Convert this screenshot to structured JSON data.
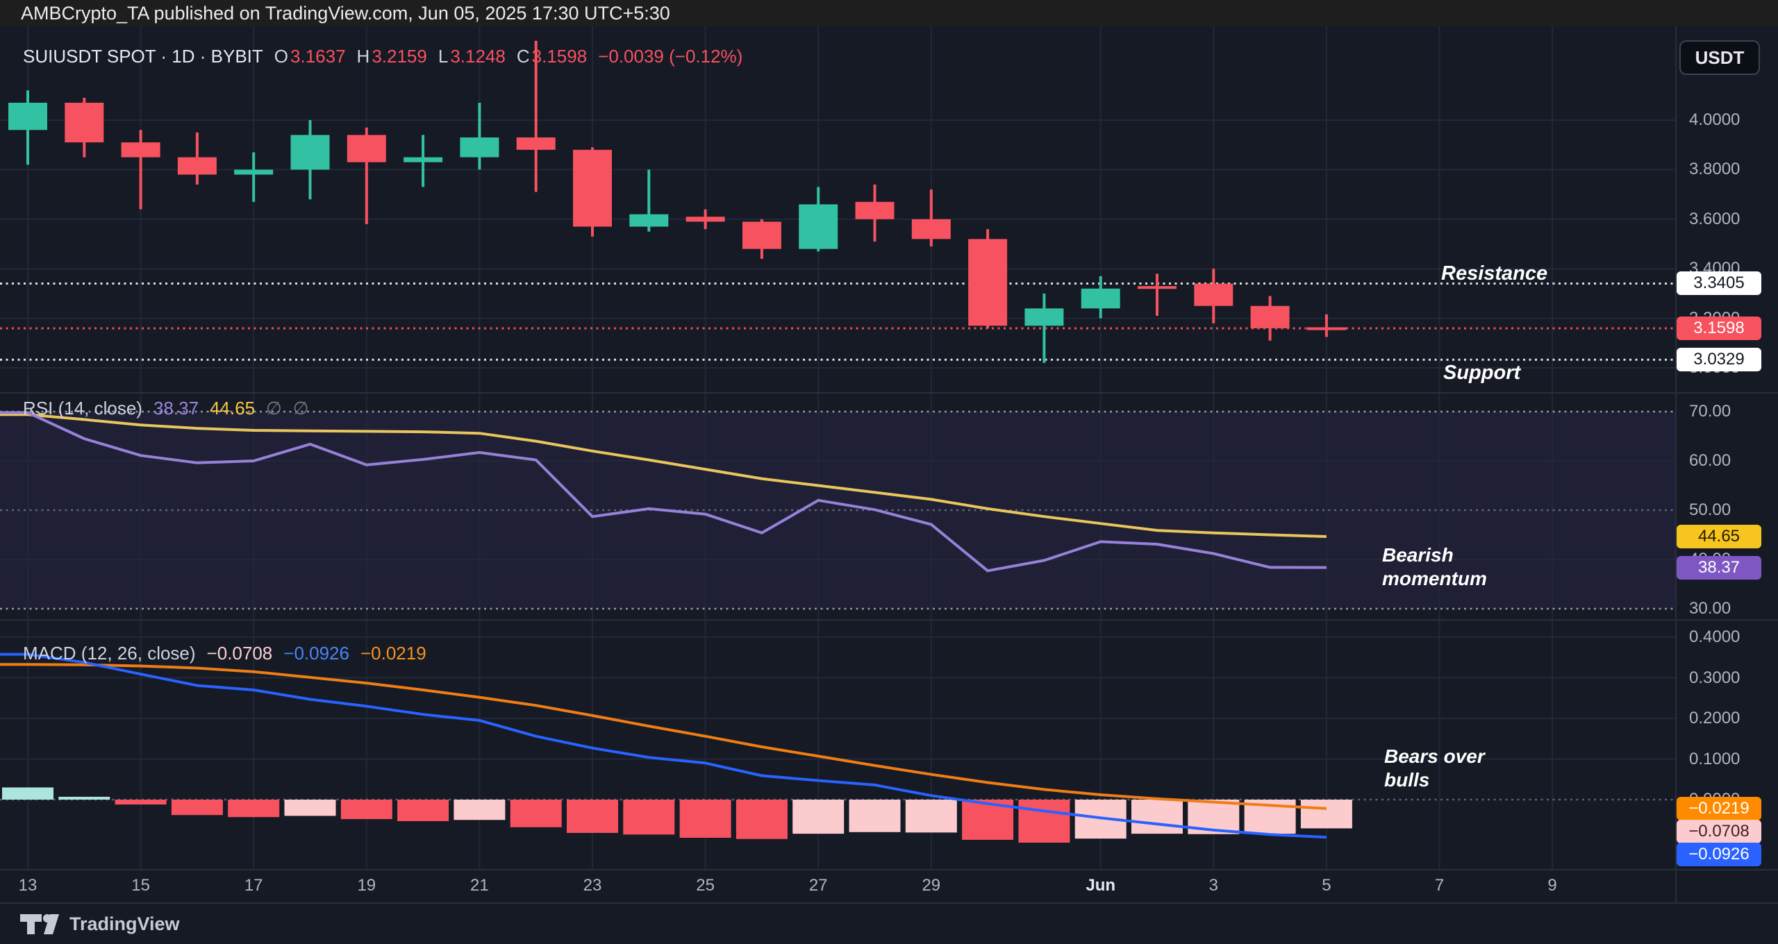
{
  "header": {
    "title": "AMBCrypto_TA published on TradingView.com, Jun 05, 2025 17:30 UTC+5:30"
  },
  "toolbar": {
    "currency_label": "USDT"
  },
  "main_legend": {
    "symbol_title": "SUIUSDT SPOT · 1D · BYBIT",
    "open_label": "O",
    "open": "3.1637",
    "high_label": "H",
    "high": "3.2159",
    "low_label": "L",
    "low": "3.1248",
    "close_label": "C",
    "close": "3.1598",
    "change": "−0.0039 (−0.12%)"
  },
  "rsi_legend": {
    "title": "RSI",
    "params": "(14, close)",
    "rsi_value": "38.37",
    "ma_value": "44.65",
    "placeholder1": "∅",
    "placeholder2": "∅"
  },
  "macd_legend": {
    "title": "MACD",
    "params": "(12, 26, close)",
    "histogram_value": "−0.0708",
    "macd_value": "−0.0926",
    "signal_value": "−0.0219"
  },
  "annotations": {
    "resistance": "Resistance",
    "support": "Support",
    "rsi_note_line1": "Bearish",
    "rsi_note_line2": "momentum",
    "macd_note_line1": "Bears over",
    "macd_note_line2": "bulls"
  },
  "footer": {
    "brand": "TradingView"
  },
  "price_axis": {
    "ticks": [
      {
        "label": "4.0000",
        "value": 4.0
      },
      {
        "label": "3.8000",
        "value": 3.8
      },
      {
        "label": "3.6000",
        "value": 3.6
      },
      {
        "label": "3.4000",
        "value": 3.4
      },
      {
        "label": "3.2000",
        "value": 3.2
      },
      {
        "label": "3.0000",
        "value": 3.0
      }
    ],
    "badges": [
      {
        "name": "resistance-price-badge",
        "label": "3.3405",
        "value": 3.3405,
        "bg": "#ffffff",
        "fg": "#131722"
      },
      {
        "name": "last-price-badge",
        "label": "3.1598",
        "value": 3.1598,
        "bg": "#f7525f",
        "fg": "#ffffff"
      },
      {
        "name": "support-price-badge",
        "label": "3.0329",
        "value": 3.0329,
        "bg": "#ffffff",
        "fg": "#131722"
      }
    ]
  },
  "rsi_axis": {
    "ticks": [
      {
        "label": "70.00",
        "value": 70
      },
      {
        "label": "60.00",
        "value": 60
      },
      {
        "label": "50.00",
        "value": 50
      },
      {
        "label": "40.00",
        "value": 40
      },
      {
        "label": "30.00",
        "value": 30
      }
    ],
    "badges": [
      {
        "name": "rsi-ma-badge",
        "label": "44.65",
        "value": 44.65,
        "bg": "#f6c51f",
        "fg": "#241b00"
      },
      {
        "name": "rsi-value-badge",
        "label": "38.37",
        "value": 38.37,
        "bg": "#7e57c2",
        "fg": "#ffffff"
      }
    ]
  },
  "macd_axis": {
    "ticks": [
      {
        "label": "0.4000",
        "value": 0.4
      },
      {
        "label": "0.3000",
        "value": 0.3
      },
      {
        "label": "0.2000",
        "value": 0.2
      },
      {
        "label": "0.1000",
        "value": 0.1
      },
      {
        "label": "0.0000",
        "value": 0.0
      }
    ],
    "badges": [
      {
        "name": "macd-signal-badge",
        "label": "−0.0219",
        "bg": "#ff8a00",
        "fg": "#ffffff"
      },
      {
        "name": "macd-histogram-badge",
        "label": "−0.0708",
        "bg": "#fccbcd",
        "fg": "#3f1f23"
      },
      {
        "name": "macd-line-badge",
        "label": "−0.0926",
        "bg": "#2962ff",
        "fg": "#ffffff"
      }
    ]
  },
  "time_axis": {
    "ticks": [
      {
        "label": "13",
        "day": 0
      },
      {
        "label": "15",
        "day": 2
      },
      {
        "label": "17",
        "day": 4
      },
      {
        "label": "19",
        "day": 6
      },
      {
        "label": "21",
        "day": 8
      },
      {
        "label": "23",
        "day": 10
      },
      {
        "label": "25",
        "day": 12
      },
      {
        "label": "27",
        "day": 14
      },
      {
        "label": "29",
        "day": 16
      },
      {
        "label": "Jun",
        "day": 19,
        "emphasis": true
      },
      {
        "label": "3",
        "day": 21
      },
      {
        "label": "5",
        "day": 23
      },
      {
        "label": "7",
        "day": 25
      },
      {
        "label": "9",
        "day": 27
      }
    ]
  },
  "chart_data": [
    {
      "type": "candlestick",
      "title": "SUIUSDT SPOT · 1D · BYBIT",
      "symbol": "SUIUSDT",
      "market": "SPOT",
      "interval": "1D",
      "exchange": "BYBIT",
      "up_color": "#32c1a3",
      "down_color": "#f7525f",
      "y_ticks": [
        4.0,
        3.8,
        3.6,
        3.4,
        3.2,
        3.0
      ],
      "ylim": [
        2.96,
        4.38
      ],
      "levels": {
        "resistance": 3.3405,
        "support": 3.0329,
        "last_price": 3.1598
      },
      "dates": [
        "May 13",
        "May 14",
        "May 15",
        "May 16",
        "May 17",
        "May 18",
        "May 19",
        "May 20",
        "May 21",
        "May 22",
        "May 23",
        "May 24",
        "May 25",
        "May 26",
        "May 27",
        "May 28",
        "May 29",
        "May 30",
        "May 31",
        "Jun 1",
        "Jun 2",
        "Jun 3",
        "Jun 4",
        "Jun 5"
      ],
      "ohlc": [
        [
          3.96,
          4.12,
          3.82,
          4.07
        ],
        [
          4.07,
          4.09,
          3.85,
          3.91
        ],
        [
          3.91,
          3.96,
          3.64,
          3.85
        ],
        [
          3.85,
          3.95,
          3.74,
          3.78
        ],
        [
          3.78,
          3.87,
          3.67,
          3.8
        ],
        [
          3.8,
          4.0,
          3.68,
          3.94
        ],
        [
          3.94,
          3.97,
          3.58,
          3.83
        ],
        [
          3.83,
          3.94,
          3.73,
          3.85
        ],
        [
          3.85,
          4.07,
          3.8,
          3.93
        ],
        [
          3.93,
          4.32,
          3.71,
          3.88
        ],
        [
          3.88,
          3.89,
          3.53,
          3.57
        ],
        [
          3.57,
          3.8,
          3.55,
          3.62
        ],
        [
          3.61,
          3.64,
          3.56,
          3.59
        ],
        [
          3.59,
          3.6,
          3.44,
          3.48
        ],
        [
          3.48,
          3.73,
          3.47,
          3.66
        ],
        [
          3.67,
          3.74,
          3.51,
          3.6
        ],
        [
          3.6,
          3.72,
          3.49,
          3.52
        ],
        [
          3.52,
          3.56,
          3.16,
          3.17
        ],
        [
          3.17,
          3.3,
          3.02,
          3.24
        ],
        [
          3.24,
          3.37,
          3.2,
          3.32
        ],
        [
          3.33,
          3.38,
          3.21,
          3.32
        ],
        [
          3.34,
          3.4,
          3.18,
          3.25
        ],
        [
          3.25,
          3.29,
          3.11,
          3.16
        ],
        [
          3.1637,
          3.2159,
          3.1248,
          3.1598
        ]
      ]
    },
    {
      "type": "line",
      "title": "RSI (14, close)",
      "y_ticks": [
        70,
        60,
        50,
        40,
        30
      ],
      "ylim": [
        27,
        73
      ],
      "levels": {
        "overbought": 70,
        "middle": 50,
        "oversold": 30
      },
      "band_fill": "rgba(126,87,194,0.10)",
      "series": [
        {
          "name": "RSI-based MA",
          "color": "#e9c55e",
          "last": 44.65,
          "values": [
            69.4,
            68.4,
            67.3,
            66.6,
            66.2,
            66.1,
            66.0,
            65.9,
            65.6,
            64.0,
            62.0,
            60.2,
            58.3,
            56.4,
            55.0,
            53.6,
            52.2,
            50.3,
            48.7,
            47.3,
            45.9,
            45.4,
            45.0,
            44.65
          ]
        },
        {
          "name": "RSI",
          "color": "#9681d8",
          "last": 38.37,
          "values": [
            69.8,
            64.5,
            61.1,
            59.6,
            60.0,
            63.4,
            59.2,
            60.3,
            61.7,
            60.2,
            48.7,
            50.3,
            49.2,
            45.4,
            52.0,
            50.1,
            47.1,
            37.7,
            39.8,
            43.6,
            43.1,
            41.2,
            38.4,
            38.37
          ]
        }
      ]
    },
    {
      "type": "macd",
      "title": "MACD (12, 26, close)",
      "y_ticks": [
        0.4,
        0.3,
        0.2,
        0.1,
        0.0
      ],
      "ylim": [
        -0.17,
        0.44
      ],
      "zero_level": 0.0,
      "macd_color": "#2962ff",
      "signal_color": "#ef7d15",
      "histogram_palette": {
        "red": "#f7525f",
        "pink": "#fccbcd",
        "teal_light": "#ace5dc"
      },
      "macd": [
        0.358,
        0.338,
        0.309,
        0.281,
        0.27,
        0.247,
        0.23,
        0.21,
        0.195,
        0.156,
        0.127,
        0.104,
        0.09,
        0.059,
        0.047,
        0.036,
        0.01,
        -0.01,
        -0.028,
        -0.045,
        -0.06,
        -0.075,
        -0.086,
        -0.0926
      ],
      "signal": [
        0.333,
        0.332,
        0.329,
        0.324,
        0.315,
        0.301,
        0.287,
        0.27,
        0.252,
        0.232,
        0.207,
        0.181,
        0.156,
        0.13,
        0.107,
        0.084,
        0.062,
        0.042,
        0.025,
        0.012,
        0.002,
        -0.006,
        -0.014,
        -0.0219
      ],
      "histogram": [
        0.03,
        0.007,
        -0.012,
        -0.038,
        -0.043,
        -0.04,
        -0.048,
        -0.053,
        -0.05,
        -0.068,
        -0.082,
        -0.086,
        -0.094,
        -0.097,
        -0.084,
        -0.08,
        -0.081,
        -0.099,
        -0.106,
        -0.096,
        -0.084,
        -0.085,
        -0.084,
        -0.0708
      ],
      "histogram_colors": [
        "teal_light",
        "teal_light",
        "red",
        "red",
        "red",
        "pink",
        "red",
        "red",
        "pink",
        "red",
        "red",
        "red",
        "red",
        "red",
        "pink",
        "pink",
        "pink",
        "red",
        "red",
        "pink",
        "pink",
        "pink",
        "pink",
        "pink"
      ]
    }
  ]
}
